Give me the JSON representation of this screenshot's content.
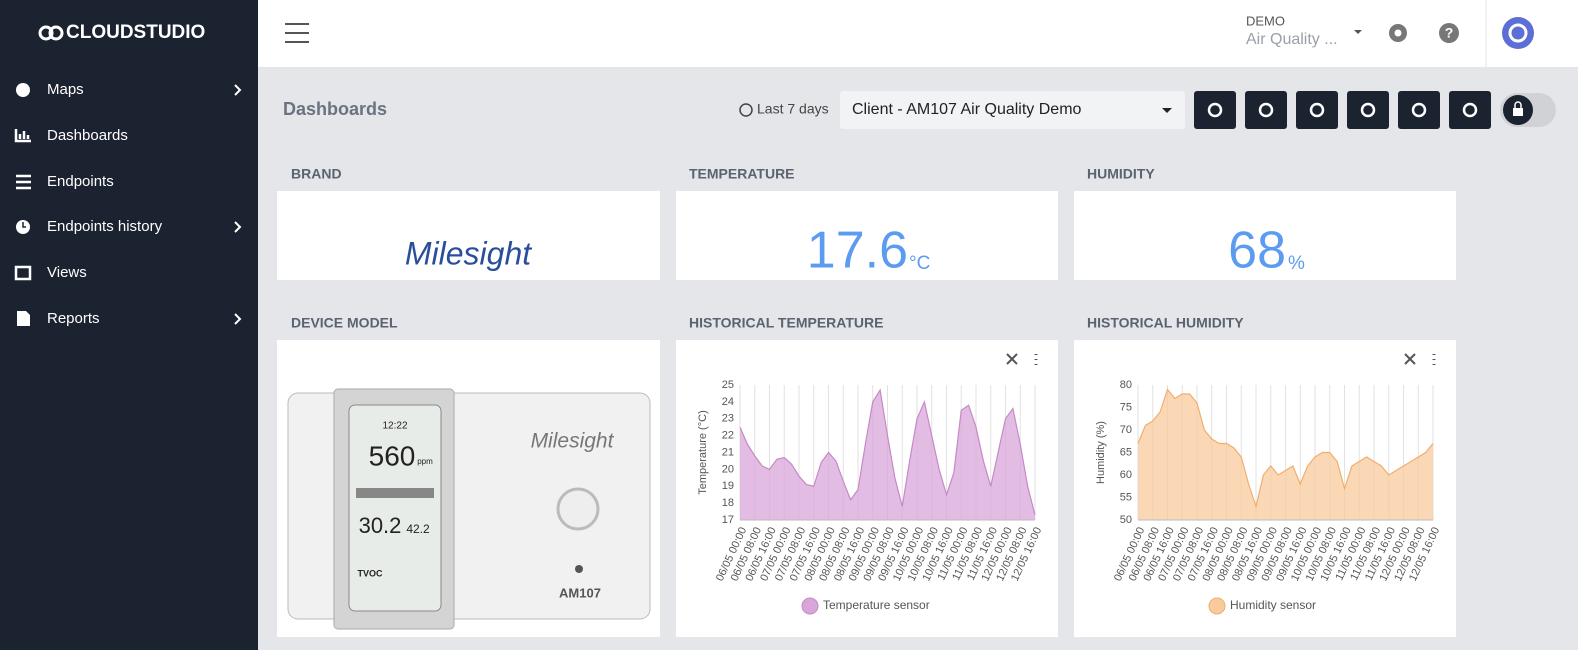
{
  "sidebar": {
    "logo": "CLOUDSTUDIO",
    "items": [
      "Maps",
      "Dashboards",
      "Endpoints",
      "Endpoints history",
      "Views",
      "Reports"
    ]
  },
  "header": {
    "account": "DEMO",
    "project": "Air Quality ..."
  },
  "toolbar": {
    "title": "Dashboards",
    "range": "Last 7 days",
    "dashboard": "Client - AM107 Air Quality Demo"
  },
  "cards": {
    "brand": {
      "title": "BRAND",
      "logo": "Milesight"
    },
    "temperature": {
      "title": "TEMPERATURE",
      "value": 17.6,
      "unit": "°C"
    },
    "humidity": {
      "title": "HUMIDITY",
      "value": 68,
      "unit": "%"
    },
    "device": {
      "title": "DEVICE MODEL",
      "brand": "Milesight",
      "model": "AM107",
      "co2": "560",
      "co2_unit": "ppm",
      "temp": "30.2",
      "hum": "42.2",
      "tvoc": "TVOC",
      "time": "12:22"
    },
    "hist_temp": {
      "title": "HISTORICAL TEMPERATURE"
    },
    "hist_hum": {
      "title": "HISTORICAL HUMIDITY"
    }
  },
  "chart_data": [
    {
      "type": "area",
      "y_label": "Temperature (°C)",
      "categories": [
        "06/05 00:00",
        null,
        "06/05 08:00",
        null,
        "06/05 16:00",
        null,
        "07/05 00:00",
        null,
        "07/05 08:00",
        null,
        "07/05 16:00",
        null,
        "08/05 00:00",
        null,
        "08/05 08:00",
        null,
        "08/05 16:00",
        null,
        "09/05 00:00",
        null,
        "09/05 08:00",
        null,
        "09/05 16:00",
        null,
        "10/05 00:00",
        null,
        "10/05 08:00",
        null,
        "10/05 16:00",
        null,
        "11/05 00:00",
        null,
        "11/05 08:00",
        null,
        "11/05 16:00",
        null,
        "12/05 00:00",
        null,
        "12/05 08:00",
        null,
        "12/05 16:00"
      ],
      "series": [
        {
          "name": "Temperature sensor",
          "color": "#d9a6d9",
          "line_color": "#c58ac5",
          "values": [
            22.5,
            21.5,
            20.8,
            20.2,
            20.0,
            20.6,
            20.7,
            20.3,
            19.6,
            19.1,
            19.0,
            20.4,
            21.0,
            20.5,
            19.3,
            18.2,
            18.8,
            21.5,
            24.0,
            24.7,
            22.0,
            19.5,
            17.8,
            20.5,
            23.0,
            24.0,
            22.0,
            20.0,
            18.5,
            19.8,
            23.5,
            23.8,
            22.5,
            20.5,
            19.0,
            21.0,
            23.0,
            23.6,
            21.5,
            19.0,
            17.3
          ]
        }
      ],
      "ylim": [
        17,
        25
      ],
      "yticks": [
        17,
        18,
        19,
        20,
        21,
        22,
        23,
        24,
        25
      ],
      "grid": true
    },
    {
      "type": "area",
      "y_label": "Humidity (%)",
      "categories": [
        "06/05 00:00",
        null,
        "06/05 08:00",
        null,
        "06/05 16:00",
        null,
        "07/05 00:00",
        null,
        "07/05 08:00",
        null,
        "07/05 16:00",
        null,
        "08/05 00:00",
        null,
        "08/05 08:00",
        null,
        "08/05 16:00",
        null,
        "09/05 00:00",
        null,
        "09/05 08:00",
        null,
        "09/05 16:00",
        null,
        "10/05 00:00",
        null,
        "10/05 08:00",
        null,
        "10/05 16:00",
        null,
        "11/05 00:00",
        null,
        "11/05 08:00",
        null,
        "11/05 16:00",
        null,
        "12/05 00:00",
        null,
        "12/05 08:00",
        null,
        "12/05 16:00"
      ],
      "series": [
        {
          "name": "Humidity sensor",
          "color": "#f9cb9c",
          "line_color": "#f0ad6e",
          "values": [
            67,
            71,
            72,
            74,
            79,
            77,
            78,
            78,
            76,
            70,
            68,
            67,
            67,
            66,
            64,
            58,
            53,
            60,
            62,
            60,
            61,
            62,
            58,
            62,
            64,
            65,
            65,
            63,
            57,
            62,
            63,
            64,
            63,
            62,
            60,
            61,
            62,
            63,
            64,
            65,
            67
          ]
        }
      ],
      "ylim": [
        50,
        80
      ],
      "yticks": [
        50,
        55,
        60,
        65,
        70,
        75,
        80
      ],
      "grid": true
    }
  ]
}
